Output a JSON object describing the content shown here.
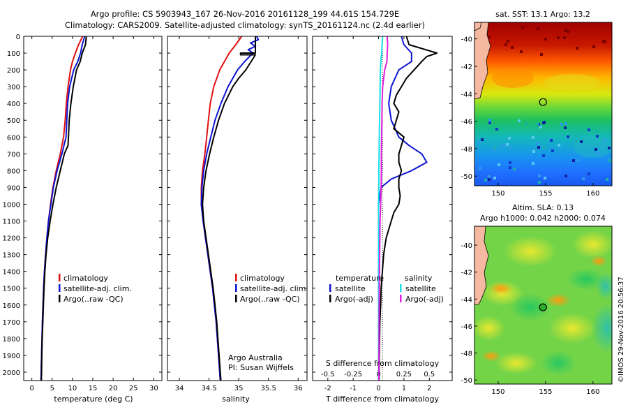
{
  "title": {
    "line1": "Argo profile: CS 5903943_167 26-Nov-2016 20161128_199 44.61S 154.729E",
    "line2": "Climatology: CARS2009. Satellite-adjusted climatology: synTS_20161124.nc (2.4d earlier)"
  },
  "colors": {
    "climatology": "#e01010",
    "satellite": "#0a14d2",
    "argo": "#000000",
    "salinity_satellite": "#18e0e8",
    "salinity_argo": "#e020e0",
    "frame": "#000000"
  },
  "depth_axis": {
    "ticks": [
      0,
      100,
      200,
      300,
      400,
      500,
      600,
      700,
      800,
      900,
      1000,
      1100,
      1200,
      1300,
      1400,
      1500,
      1600,
      1700,
      1800,
      1900,
      2000
    ],
    "range": [
      0,
      2050
    ]
  },
  "chart_data": [
    {
      "type": "line",
      "name": "temperature",
      "xlabel": "temperature (deg C)",
      "ylabel": "depth",
      "xlim": [
        -2,
        32
      ],
      "xticks": [
        0,
        5,
        10,
        15,
        20,
        25,
        30
      ],
      "legend": [
        "climatology",
        "satellite-adj. clim.",
        "Argo(..raw -QC)"
      ],
      "series": [
        {
          "name": "climatology",
          "color_key": "climatology",
          "depth": [
            0,
            50,
            100,
            150,
            200,
            300,
            400,
            500,
            600,
            700,
            800,
            900,
            1000,
            1100,
            1200,
            1300,
            1400,
            1500,
            1600,
            1700,
            1800,
            1900,
            2000,
            2050
          ],
          "values": [
            12.5,
            11.5,
            10.7,
            10.0,
            9.5,
            8.9,
            8.5,
            8.2,
            7.8,
            7.0,
            6.0,
            5.2,
            4.6,
            4.1,
            3.7,
            3.4,
            3.1,
            2.9,
            2.75,
            2.6,
            2.5,
            2.4,
            2.3,
            2.25
          ]
        },
        {
          "name": "satellite-adj. clim.",
          "color_key": "satellite",
          "depth": [
            0,
            50,
            100,
            150,
            200,
            300,
            400,
            500,
            600,
            700,
            800,
            900,
            1000,
            1100,
            1200,
            1300,
            1400,
            1500,
            1600,
            1700,
            1800,
            1900,
            2000,
            2050
          ],
          "values": [
            13.0,
            12.4,
            12.0,
            11.3,
            10.3,
            9.3,
            8.8,
            8.6,
            8.4,
            7.4,
            6.2,
            5.3,
            4.7,
            4.1,
            3.7,
            3.4,
            3.1,
            2.9,
            2.75,
            2.6,
            2.5,
            2.4,
            2.3,
            2.25
          ]
        },
        {
          "name": "Argo(..raw -QC)",
          "color_key": "argo",
          "depth": [
            0,
            50,
            100,
            150,
            200,
            300,
            400,
            500,
            600,
            650,
            700,
            800,
            900,
            1000,
            1100,
            1200,
            1300,
            1400,
            1500,
            1600,
            1700,
            1800,
            1900,
            2000,
            2050
          ],
          "values": [
            13.4,
            13.2,
            12.4,
            11.9,
            11.0,
            10.2,
            9.6,
            9.2,
            9.0,
            8.9,
            8.0,
            7.0,
            6.0,
            5.2,
            4.5,
            3.9,
            3.5,
            3.2,
            3.0,
            2.85,
            2.7,
            2.55,
            2.45,
            2.4,
            2.35
          ]
        }
      ]
    },
    {
      "type": "line",
      "name": "salinity",
      "xlabel": "salinity",
      "ylabel": "depth",
      "xlim": [
        33.8,
        36.15
      ],
      "xticks": [
        34,
        34.5,
        35,
        35.5,
        36
      ],
      "legend": [
        "climatology",
        "satellite-adj. clim.",
        "Argo(..raw -QC)"
      ],
      "credit": [
        "Argo Australia",
        "PI: Susan Wijffels"
      ],
      "series": [
        {
          "name": "climatology",
          "color_key": "climatology",
          "depth": [
            0,
            50,
            100,
            200,
            300,
            400,
            500,
            600,
            700,
            800,
            900,
            1000,
            1100,
            1200,
            1300,
            1400,
            1500,
            1600,
            1700,
            1800,
            1900,
            2000,
            2050
          ],
          "values": [
            35.05,
            34.95,
            34.84,
            34.68,
            34.58,
            34.52,
            34.49,
            34.46,
            34.43,
            34.39,
            34.37,
            34.37,
            34.4,
            34.44,
            34.48,
            34.52,
            34.56,
            34.59,
            34.62,
            34.64,
            34.66,
            34.68,
            34.69
          ]
        },
        {
          "name": "satellite-adj. clim.",
          "color_key": "satellite",
          "depth": [
            0,
            20,
            40,
            60,
            80,
            100,
            150,
            200,
            300,
            400,
            500,
            600,
            700,
            800,
            900,
            1000,
            1100,
            1200,
            1300,
            1400,
            1500,
            1600,
            1700,
            1800,
            1900,
            2000,
            2050
          ],
          "values": [
            35.3,
            35.33,
            35.2,
            35.28,
            35.16,
            35.24,
            35.1,
            34.98,
            34.82,
            34.7,
            34.6,
            34.53,
            34.46,
            34.41,
            34.38,
            34.37,
            34.4,
            34.44,
            34.48,
            34.52,
            34.56,
            34.59,
            34.62,
            34.64,
            34.66,
            34.68,
            34.69
          ]
        },
        {
          "name": "Argo(..raw -QC)",
          "color_key": "argo",
          "depth": [
            0,
            100,
            100,
            110,
            110,
            200,
            250,
            300,
            400,
            500,
            600,
            700,
            800,
            900,
            1000,
            1100,
            1200,
            1300,
            1400,
            1500,
            1600,
            1700,
            1800,
            1900,
            2000,
            2050
          ],
          "values": [
            35.28,
            35.28,
            35.03,
            35.03,
            35.28,
            35.12,
            35.0,
            34.9,
            34.76,
            34.66,
            34.58,
            34.51,
            34.45,
            34.41,
            34.39,
            34.41,
            34.45,
            34.49,
            34.53,
            34.57,
            34.6,
            34.63,
            34.65,
            34.67,
            34.69,
            34.7
          ]
        }
      ]
    },
    {
      "type": "line",
      "name": "difference",
      "xlabel": "T difference from climatology",
      "xlabel_top": "S difference from climatology",
      "xlim": [
        -2.6,
        2.9
      ],
      "xticks": [
        -2,
        -1,
        0,
        1,
        2
      ],
      "xticks_top": [
        -0.5,
        -0.25,
        0,
        0.25,
        0.5
      ],
      "legend": {
        "temperature_header": "temperature",
        "salinity_header": "salinity",
        "entries": [
          "satellite",
          "Argo(-adj)",
          "satellite",
          "Argo(-adj)"
        ]
      },
      "series": [
        {
          "name": "temperature satellite",
          "color_key": "satellite",
          "depth": [
            0,
            50,
            100,
            150,
            200,
            300,
            400,
            500,
            600,
            650,
            700,
            750,
            800,
            850,
            900,
            1000,
            1100,
            1200,
            1300,
            1400,
            1500,
            1600,
            1700,
            1800,
            1900,
            2000,
            2050
          ],
          "values": [
            0.9,
            1.0,
            1.3,
            1.3,
            0.8,
            0.5,
            0.4,
            0.5,
            0.8,
            1.2,
            1.7,
            1.9,
            1.3,
            0.5,
            0.1,
            0.0,
            0.0,
            0.0,
            0.0,
            0.0,
            0.0,
            0.0,
            0.0,
            0.0,
            0.0,
            0.0,
            0.0
          ]
        },
        {
          "name": "temperature Argo",
          "color_key": "argo",
          "depth": [
            0,
            50,
            100,
            110,
            120,
            150,
            200,
            250,
            300,
            350,
            400,
            450,
            500,
            550,
            600,
            650,
            700,
            750,
            800,
            850,
            900,
            950,
            1000,
            1050,
            1100,
            1150,
            1200,
            1250,
            1300,
            1400,
            1500,
            1600,
            1700,
            1800,
            1900,
            2000,
            2050
          ],
          "values": [
            1.1,
            1.2,
            2.3,
            2.1,
            1.9,
            1.7,
            1.4,
            1.1,
            0.9,
            0.7,
            0.6,
            0.8,
            0.7,
            0.6,
            1.0,
            0.9,
            0.8,
            0.8,
            0.9,
            0.8,
            0.8,
            0.85,
            0.8,
            0.6,
            0.5,
            0.4,
            0.3,
            0.25,
            0.2,
            0.15,
            0.1,
            0.08,
            0.05,
            0.04,
            0.03,
            0.02,
            0.02
          ]
        },
        {
          "name": "salinity satellite",
          "color_key": "salinity_satellite",
          "depth": [
            0,
            50,
            100,
            150,
            200,
            300,
            400,
            500,
            600,
            700,
            800,
            900,
            1000,
            1100,
            1200,
            1300,
            1400,
            1500,
            1600,
            1700,
            1800,
            1900,
            2000,
            2050
          ],
          "values": [
            0.16,
            0.14,
            0.12,
            0.09,
            0.07,
            0.06,
            0.05,
            0.04,
            0.03,
            0.02,
            0.01,
            0.01,
            0.0,
            0.0,
            0.0,
            0.0,
            0.0,
            0.0,
            0.0,
            0.0,
            0.0,
            0.0,
            0.0,
            0.0
          ]
        },
        {
          "name": "salinity Argo",
          "color_key": "salinity_argo",
          "depth": [
            0,
            50,
            100,
            150,
            200,
            300,
            400,
            500,
            600,
            700,
            800,
            900,
            1000,
            1100,
            1200,
            1300,
            1400,
            1500,
            1600,
            1700,
            1800,
            1900,
            2000,
            2050
          ],
          "values": [
            0.34,
            0.36,
            0.34,
            0.33,
            0.24,
            0.16,
            0.14,
            0.13,
            0.12,
            0.11,
            0.11,
            0.1,
            0.08,
            0.06,
            0.05,
            0.04,
            0.035,
            0.03,
            0.025,
            0.02,
            0.02,
            0.015,
            0.01,
            0.01
          ]
        }
      ]
    },
    {
      "type": "heatmap",
      "name": "sst-map",
      "title": "sat. SST: 13.1 Argo: 13.2",
      "xlim": [
        147.5,
        162
      ],
      "ylim": [
        -50.7,
        -38.8
      ],
      "xticks": [
        150,
        155,
        160
      ],
      "yticks": [
        -40,
        -42,
        -44,
        -46,
        -48,
        -50
      ],
      "argo_position": {
        "lon": 154.729,
        "lat": -44.61
      }
    },
    {
      "type": "heatmap",
      "name": "sla-map",
      "title_line1": "Altim. SLA: 0.13",
      "title_line2": "Argo h1000: 0.042 h2000: 0.074",
      "xlim": [
        147.5,
        162
      ],
      "ylim": [
        -50.3,
        -38.6
      ],
      "xticks": [
        150,
        155,
        160
      ],
      "yticks": [
        -40,
        -42,
        -44,
        -46,
        -48,
        -50
      ],
      "argo_position": {
        "lon": 154.729,
        "lat": -44.61
      }
    }
  ],
  "footer_stamp": "©IMOS 29-Nov-2016 20:56:37"
}
